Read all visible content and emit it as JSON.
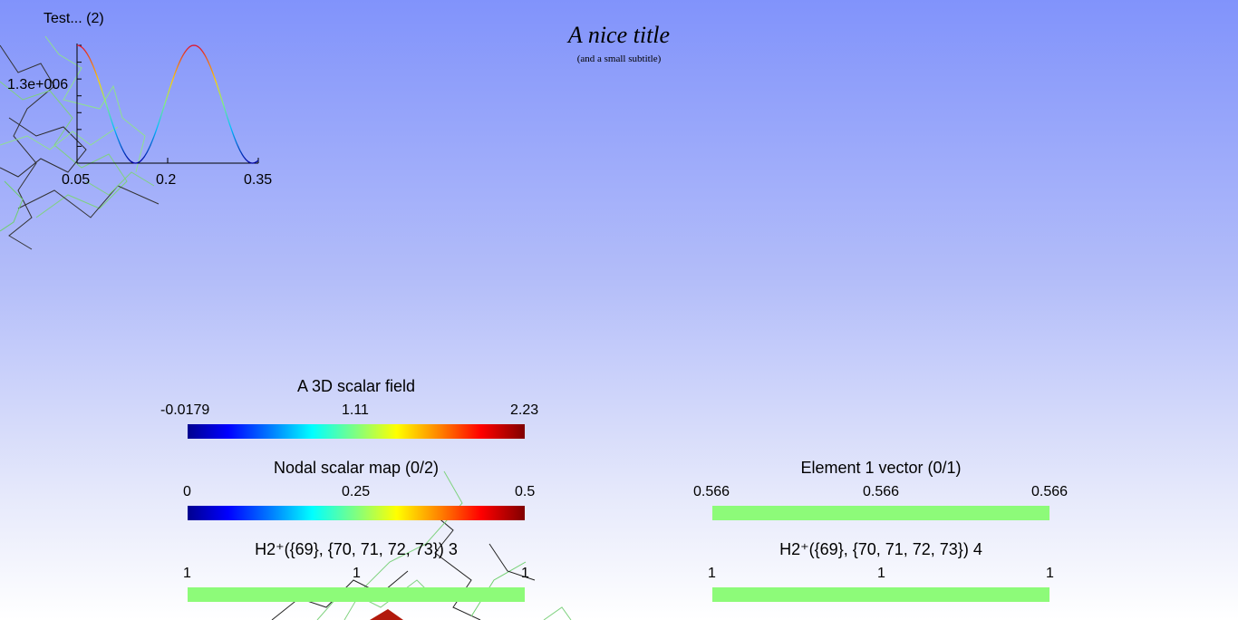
{
  "header": {
    "title": "A nice title",
    "subtitle": "(and a small subtitle)"
  },
  "plot": {
    "title": "Test... (2)",
    "y_tick": "1.3e+006",
    "x_ticks": [
      "0.05",
      "0.2",
      "0.35"
    ]
  },
  "chart_data": {
    "type": "line",
    "title": "Test... (2)",
    "x": [
      0.05,
      0.35
    ],
    "xlim": [
      0.05,
      0.35
    ],
    "x_ticks": [
      "0.05",
      "0.2",
      "0.35"
    ],
    "y_tick_label": "1.3e+006",
    "curve": "sinusoid colored by value"
  },
  "colorbars": [
    {
      "title": "A 3D scalar field",
      "ticks": [
        "-0.0179",
        "1.11",
        "2.23"
      ],
      "colormap": "rainbow"
    },
    {
      "title": "Nodal scalar map (0/2)",
      "ticks": [
        "0",
        "0.25",
        "0.5"
      ],
      "colormap": "rainbow"
    },
    {
      "title": "Element 1 vector (0/1)",
      "ticks": [
        "0.566",
        "0.566",
        "0.566"
      ],
      "colormap": "constant",
      "color": "#8dfb79"
    },
    {
      "title": "H2⁺({69}, {70, 71, 72, 73}) 3",
      "ticks": [
        "1",
        "1",
        "1"
      ],
      "colormap": "constant",
      "color": "#8dfb79"
    },
    {
      "title": "H2⁺({69}, {70, 71, 72, 73}) 4",
      "ticks": [
        "1",
        "1",
        "1"
      ],
      "colormap": "constant",
      "color": "#8dfb79"
    }
  ],
  "colors": {
    "background_top": "#8193fb",
    "background_bottom": "#ffffff",
    "constant_bar": "#8dfb79"
  }
}
